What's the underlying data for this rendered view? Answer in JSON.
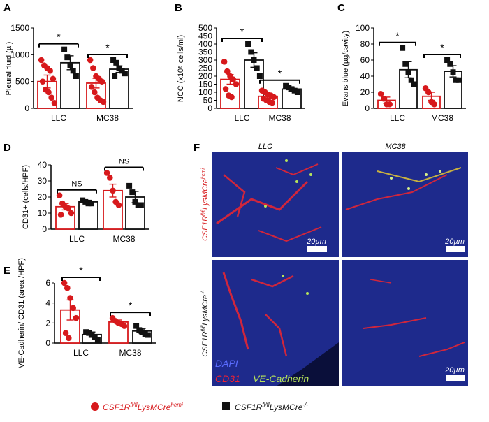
{
  "colors": {
    "red": "#d7191c",
    "black": "#111111",
    "ko_fill": "#ffffff"
  },
  "panels": {
    "A": {
      "letter": "A"
    },
    "B": {
      "letter": "B"
    },
    "C": {
      "letter": "C"
    },
    "D": {
      "letter": "D"
    },
    "E": {
      "letter": "E"
    },
    "F": {
      "letter": "F"
    }
  },
  "chart_data": [
    {
      "panel": "A",
      "type": "bar",
      "ylabel": "Pleural fluid (µl)",
      "ylim": [
        0,
        1500
      ],
      "yticks": [
        0,
        500,
        1000,
        1500
      ],
      "categories": [
        "LLC",
        "MC38"
      ],
      "series": [
        {
          "group": "CSF1R fl/fl LysMCre hemi",
          "values": [
            500,
            470
          ],
          "sem": [
            120,
            90
          ],
          "points": [
            [
              900,
              800,
              750,
              700,
              550,
              500,
              350,
              300,
              200,
              100
            ],
            [
              900,
              750,
              600,
              550,
              500,
              400,
              300,
              200,
              150,
              120
            ]
          ]
        },
        {
          "group": "CSF1R fl/fl LysMCre -/-",
          "values": [
            850,
            730
          ],
          "sem": [
            130,
            60
          ],
          "points": [
            [
              1100,
              950,
              800,
              700,
              600
            ],
            [
              900,
              850,
              750,
              700,
              650,
              600
            ]
          ]
        }
      ],
      "annotations": [
        "*",
        "*"
      ]
    },
    {
      "panel": "B",
      "type": "bar",
      "ylabel": "NCC (x10⁵ cells/ml)",
      "ylim": [
        0,
        500
      ],
      "yticks": [
        0,
        50,
        100,
        150,
        200,
        250,
        300,
        350,
        400,
        450,
        500
      ],
      "categories": [
        "LLC",
        "MC38"
      ],
      "series": [
        {
          "group": "CSF1R fl/fl LysMCre hemi",
          "values": [
            180,
            75
          ],
          "sem": [
            30,
            12
          ],
          "points": [
            [
              290,
              230,
              200,
              180,
              150,
              120,
              80,
              70
            ],
            [
              110,
              100,
              85,
              80,
              70,
              60,
              50,
              40,
              35
            ]
          ]
        },
        {
          "group": "CSF1R fl/fl LysMCre -/-",
          "values": [
            300,
            120
          ],
          "sem": [
            45,
            12
          ],
          "points": [
            [
              400,
              350,
              300,
              250,
              200
            ],
            [
              140,
              130,
              120,
              110,
              100
            ]
          ]
        }
      ],
      "annotations": [
        "*",
        "*"
      ]
    },
    {
      "panel": "C",
      "type": "bar",
      "ylabel": "Evans blue (µg/cavity)",
      "ylim": [
        0,
        100
      ],
      "yticks": [
        0,
        20,
        40,
        60,
        80,
        100
      ],
      "categories": [
        "LLC",
        "MC38"
      ],
      "series": [
        {
          "group": "CSF1R fl/fl LysMCre hemi",
          "values": [
            10,
            15
          ],
          "sem": [
            4,
            5
          ],
          "points": [
            [
              18,
              12,
              5,
              5
            ],
            [
              25,
              20,
              8,
              5
            ]
          ]
        },
        {
          "group": "CSF1R fl/fl LysMCre -/-",
          "values": [
            48,
            46
          ],
          "sem": [
            10,
            7
          ],
          "points": [
            [
              75,
              55,
              45,
              35,
              30
            ],
            [
              60,
              55,
              45,
              35,
              35
            ]
          ]
        }
      ],
      "annotations": [
        "*",
        "*"
      ]
    },
    {
      "panel": "D",
      "type": "bar",
      "ylabel": "CD31+ (cells/HPF)",
      "ylim": [
        0,
        40
      ],
      "yticks": [
        0,
        10,
        20,
        30,
        40
      ],
      "categories": [
        "LLC",
        "MC38"
      ],
      "series": [
        {
          "group": "CSF1R fl/fl LysMCre hemi",
          "values": [
            14,
            24
          ],
          "sem": [
            2,
            4
          ],
          "points": [
            [
              21,
              16,
              14,
              13,
              10,
              9
            ],
            [
              35,
              32,
              24,
              17,
              15
            ]
          ]
        },
        {
          "group": "CSF1R fl/fl LysMCre -/-",
          "values": [
            17,
            20
          ],
          "sem": [
            1,
            3.5
          ],
          "points": [
            [
              18,
              17,
              16,
              16
            ],
            [
              27,
              23,
              17,
              15,
              15
            ]
          ]
        }
      ],
      "annotations": [
        "NS",
        "NS"
      ]
    },
    {
      "panel": "E",
      "type": "bar",
      "ylabel": "VE-Cadherin/ CD31 (area /HPF)",
      "ylim": [
        0,
        6
      ],
      "yticks": [
        0,
        2,
        4,
        6
      ],
      "categories": [
        "LLC",
        "MC38"
      ],
      "series": [
        {
          "group": "CSF1R fl/fl LysMCre hemi",
          "values": [
            3.3,
            2.1
          ],
          "sem": [
            1.0,
            0.2
          ],
          "points": [
            [
              6.0,
              5.5,
              4.5,
              3.5,
              2.5,
              1.0,
              0.5
            ],
            [
              2.5,
              2.2,
              2.0,
              1.9,
              1.7
            ]
          ]
        },
        {
          "group": "CSF1R fl/fl LysMCre -/-",
          "values": [
            0.85,
            1.2
          ],
          "sem": [
            0.25,
            0.25
          ],
          "points": [
            [
              1.1,
              1.0,
              0.8,
              0.6,
              0.3
            ],
            [
              1.7,
              1.3,
              1.1,
              0.9,
              0.8
            ]
          ]
        }
      ],
      "annotations": [
        "*",
        "*"
      ]
    }
  ],
  "microscopy": {
    "col_labels": [
      "LLC",
      "MC38"
    ],
    "row1_label": {
      "base": "CSF1R",
      "sup1": "fl/fl",
      "mid": "LysMCre",
      "sup2": "hemi"
    },
    "row2_label": {
      "base": "CSF1R",
      "sup1": "fl/fl",
      "mid": "LysMCre",
      "sup2": "-/-"
    },
    "scale_bar": "20µm",
    "stain_dapi": "DAPI",
    "stain_cd31": "CD31",
    "stain_vecad": "VE-Cadherin"
  },
  "legend": {
    "item1": {
      "base": "CSF1R",
      "sup1": "fl/fl",
      "mid": "LysMCre",
      "sup2": "hemi"
    },
    "item2": {
      "base": "CSF1R",
      "sup1": "fl/fl",
      "mid": "LysMCre",
      "sup2": "-/-"
    }
  }
}
